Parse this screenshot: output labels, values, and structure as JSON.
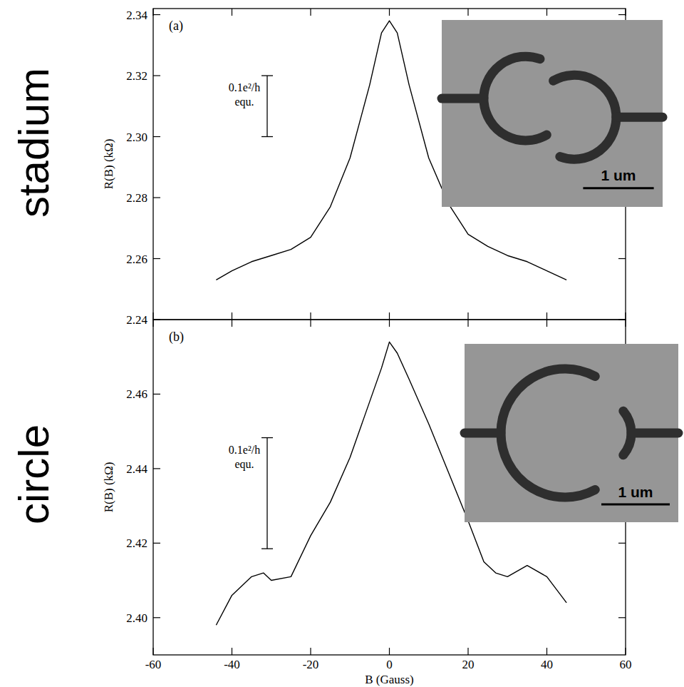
{
  "chart_data": [
    {
      "type": "line",
      "title": "stadium",
      "panel_label": "(a)",
      "y_label": "R(B) (kΩ)",
      "xlim": [
        -60,
        60
      ],
      "xticks": [
        -60,
        -40,
        -20,
        0,
        20,
        40,
        60
      ],
      "ylim": [
        2.24,
        2.342
      ],
      "yticks": [
        2.24,
        2.26,
        2.28,
        {
          "value": 2.3,
          "label": "2.30"
        },
        2.32,
        2.34
      ],
      "tick_labels": "y",
      "grid": false,
      "scale_bar": {
        "label": [
          "0.1e²/h",
          "equ."
        ],
        "from": 2.32,
        "to": 2.3
      },
      "inset": {
        "shape": "stadium",
        "scale_label": "1 um"
      },
      "series": [
        {
          "color": "#000000",
          "x": [
            -44,
            -40,
            -35,
            -30,
            -25,
            -20,
            -15,
            -10,
            -5,
            -2,
            0,
            2,
            5,
            10,
            15,
            20,
            25,
            30,
            35,
            40,
            45
          ],
          "values": [
            2.253,
            2.256,
            2.259,
            2.261,
            2.263,
            2.267,
            2.277,
            2.293,
            2.317,
            2.334,
            2.338,
            2.334,
            2.317,
            2.293,
            2.278,
            2.268,
            2.264,
            2.261,
            2.259,
            2.256,
            2.253
          ]
        }
      ]
    },
    {
      "type": "line",
      "title": "circle",
      "panel_label": "(b)",
      "y_label": "R(B) (kΩ)",
      "x_label": "B (Gauss)",
      "xlim": [
        -60,
        60
      ],
      "xticks": [
        -60,
        -40,
        -20,
        0,
        20,
        40,
        60
      ],
      "ylim": [
        2.39,
        2.48
      ],
      "yticks": [
        {
          "value": 2.4,
          "label": "2.40"
        },
        2.42,
        2.44,
        2.46
      ],
      "grid": false,
      "scale_bar": {
        "label": [
          "0.1e²/h",
          "equ."
        ],
        "from": 2.4483,
        "to": 2.4185
      },
      "inset": {
        "shape": "circle",
        "scale_label": "1 um"
      },
      "series": [
        {
          "color": "#000000",
          "x": [
            -44,
            -40,
            -35,
            -32,
            -30,
            -25,
            -20,
            -15,
            -10,
            -5,
            -2,
            0,
            2,
            5,
            10,
            15,
            20,
            24,
            27,
            30,
            35,
            40,
            45
          ],
          "values": [
            2.398,
            2.406,
            2.411,
            2.412,
            2.41,
            2.411,
            2.422,
            2.431,
            2.443,
            2.458,
            2.467,
            2.474,
            2.471,
            2.464,
            2.452,
            2.439,
            2.426,
            2.415,
            2.412,
            2.411,
            2.414,
            2.411,
            2.404
          ]
        }
      ]
    }
  ]
}
